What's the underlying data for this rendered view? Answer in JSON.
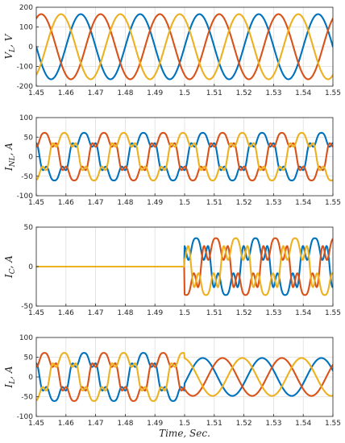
{
  "chart_data": [
    {
      "type": "line",
      "ylabel": "V_L, V",
      "ylim": [
        -200,
        200
      ],
      "yticks": [
        -200,
        -100,
        0,
        100,
        200
      ],
      "xlim": [
        1.45,
        1.55
      ],
      "xticks": [
        1.45,
        1.46,
        1.47,
        1.48,
        1.49,
        1.5,
        1.51,
        1.52,
        1.53,
        1.54,
        1.55
      ],
      "grid": true,
      "waveform": {
        "freq_hz": 50,
        "amplitude": 165,
        "harmonics": [],
        "harmonic_amp": 0
      },
      "series": [
        {
          "phase_deg": 0,
          "color": "#0072bd"
        },
        {
          "phase_deg": -120,
          "color": "#d95319"
        },
        {
          "phase_deg": 120,
          "color": "#edb120"
        }
      ]
    },
    {
      "type": "line",
      "ylabel": "I_{NL}, A",
      "ylim": [
        -100,
        100
      ],
      "yticks": [
        -100,
        -50,
        0,
        50,
        100
      ],
      "xlim": [
        1.45,
        1.55
      ],
      "xticks": [
        1.45,
        1.46,
        1.47,
        1.48,
        1.49,
        1.5,
        1.51,
        1.52,
        1.53,
        1.54,
        1.55
      ],
      "grid": true,
      "waveform": {
        "freq_hz": 50,
        "amplitude": 55,
        "harmonics": [
          5,
          7
        ],
        "harmonic_amp": 12
      },
      "series": [
        {
          "phase_deg": -20,
          "color": "#0072bd"
        },
        {
          "phase_deg": -140,
          "color": "#d95319"
        },
        {
          "phase_deg": 100,
          "color": "#edb120"
        }
      ]
    },
    {
      "type": "line",
      "ylabel": "I_C, A",
      "ylim": [
        -50,
        50
      ],
      "yticks": [
        -50,
        0,
        50
      ],
      "xlim": [
        1.45,
        1.55
      ],
      "xticks": [
        1.45,
        1.46,
        1.47,
        1.48,
        1.49,
        1.5,
        1.51,
        1.52,
        1.53,
        1.54,
        1.55
      ],
      "grid": true,
      "start_time": 1.5,
      "waveform": {
        "freq_hz": 50,
        "amplitude": 30,
        "harmonics": [
          5,
          7
        ],
        "harmonic_amp": 12
      },
      "series": [
        {
          "phase_deg": 20,
          "color": "#0072bd"
        },
        {
          "phase_deg": -100,
          "color": "#d95319"
        },
        {
          "phase_deg": 140,
          "color": "#edb120"
        }
      ]
    },
    {
      "type": "line",
      "ylabel": "I_L, A",
      "ylim": [
        -100,
        100
      ],
      "yticks": [
        -100,
        -50,
        0,
        50,
        100
      ],
      "xlim": [
        1.45,
        1.55
      ],
      "xlabel": "Time, Sec.",
      "xticks": [
        1.45,
        1.46,
        1.47,
        1.48,
        1.49,
        1.5,
        1.51,
        1.52,
        1.53,
        1.54,
        1.55
      ],
      "grid": true,
      "compensated_after": 1.5,
      "waveform": {
        "freq_hz": 50,
        "amplitude": 55,
        "harmonics": [
          5,
          7
        ],
        "harmonic_amp": 12,
        "amplitude_after": 48
      },
      "series": [
        {
          "phase_deg": -20,
          "color": "#0072bd"
        },
        {
          "phase_deg": -140,
          "color": "#d95319"
        },
        {
          "phase_deg": 100,
          "color": "#edb120"
        }
      ]
    }
  ]
}
